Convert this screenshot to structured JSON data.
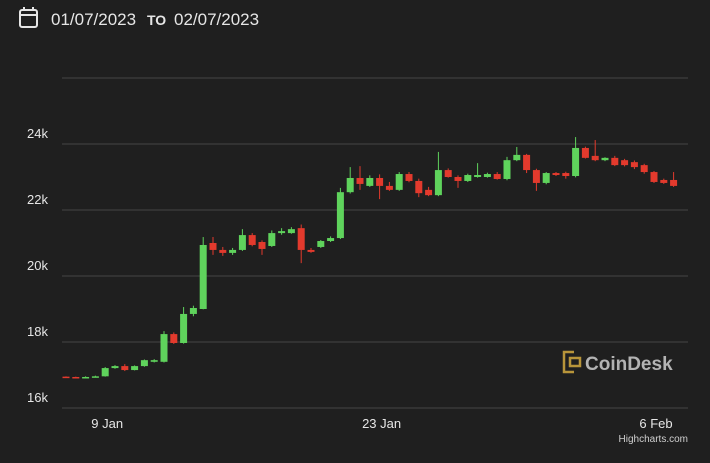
{
  "header": {
    "from": "01/07/2023",
    "separator": "TO",
    "to": "02/07/2023"
  },
  "chart_data": {
    "type": "candlestick",
    "categories": [
      null,
      null,
      null,
      null,
      "9 Jan",
      null,
      null,
      null,
      null,
      null,
      null,
      null,
      null,
      null,
      null,
      null,
      null,
      null,
      null,
      null,
      null,
      null,
      null,
      null,
      null,
      null,
      null,
      null,
      null,
      null,
      null,
      null,
      "23 Jan",
      null,
      null,
      null,
      null,
      null,
      null,
      null,
      null,
      null,
      null,
      null,
      null,
      null,
      null,
      null,
      null,
      null,
      null,
      null,
      null,
      null,
      null,
      null,
      null,
      null,
      null,
      null,
      "6 Feb",
      null,
      null
    ],
    "series": [
      {
        "up_color": "#5fd35c",
        "down_color": "#e33a2d",
        "open": [
          16950,
          16940,
          16930,
          16940,
          16960,
          17210,
          17270,
          17150,
          17270,
          17400,
          17400,
          18240,
          17970,
          18850,
          19000,
          21000,
          20790,
          20700,
          20790,
          21240,
          21030,
          20910,
          21300,
          21300,
          21450,
          20790,
          20880,
          21060,
          21150,
          22540,
          22970,
          22730,
          22970,
          22730,
          22610,
          23090,
          22880,
          22610,
          22450,
          23210,
          23000,
          22880,
          23000,
          23000,
          23090,
          22940,
          23510,
          23670,
          23210,
          22820,
          23120,
          23120,
          23030,
          23880,
          23640,
          23510,
          23580,
          23510,
          23450,
          23360,
          23150,
          22910,
          22910
        ],
        "high": [
          16960,
          16950,
          16960,
          16980,
          17240,
          17300,
          17330,
          17290,
          17470,
          17480,
          18330,
          18290,
          19060,
          19100,
          21180,
          21180,
          20880,
          20850,
          21420,
          21300,
          21080,
          21380,
          21450,
          21480,
          21560,
          20850,
          21090,
          21200,
          22670,
          23300,
          23330,
          23050,
          23080,
          22850,
          23150,
          23150,
          22950,
          22700,
          23760,
          23260,
          23050,
          23100,
          23420,
          23130,
          23150,
          23610,
          23910,
          23700,
          23250,
          23150,
          23150,
          23160,
          24210,
          23920,
          24120,
          23600,
          23640,
          23550,
          23500,
          23400,
          23180,
          22950,
          23150
        ],
        "low": [
          16930,
          16920,
          16920,
          16930,
          16950,
          17190,
          17120,
          17140,
          17250,
          17380,
          17380,
          17940,
          17950,
          18780,
          18990,
          20640,
          20610,
          20640,
          20760,
          20900,
          20640,
          20880,
          21250,
          21280,
          20390,
          20700,
          20850,
          21030,
          21120,
          22500,
          22610,
          22700,
          22330,
          22580,
          22580,
          22840,
          22390,
          22420,
          22420,
          22980,
          22670,
          22850,
          22980,
          22980,
          22920,
          22900,
          23480,
          23120,
          22580,
          22780,
          23030,
          22950,
          22990,
          23560,
          23480,
          23480,
          23330,
          23320,
          23240,
          23100,
          22820,
          22790,
          22700
        ],
        "close": [
          16940,
          16930,
          16940,
          16960,
          17210,
          17270,
          17150,
          17270,
          17450,
          17450,
          18240,
          17970,
          18850,
          19030,
          20940,
          20790,
          20700,
          20790,
          21240,
          20940,
          20820,
          21300,
          21360,
          21420,
          20790,
          20730,
          21060,
          21150,
          22540,
          22970,
          22790,
          22970,
          22730,
          22610,
          23090,
          22880,
          22510,
          22450,
          23210,
          23000,
          22880,
          23060,
          23060,
          23090,
          22940,
          23510,
          23670,
          23210,
          22820,
          23120,
          23060,
          23030,
          23880,
          23580,
          23510,
          23580,
          23360,
          23360,
          23300,
          23150,
          22850,
          22820,
          22730
        ]
      }
    ],
    "ylim": [
      16000,
      26000
    ],
    "yticks": [
      {
        "value": 16000,
        "label": "16k"
      },
      {
        "value": 18000,
        "label": "18k"
      },
      {
        "value": 20000,
        "label": "20k"
      },
      {
        "value": 22000,
        "label": "22k"
      },
      {
        "value": 24000,
        "label": "24k"
      }
    ],
    "grid": true,
    "watermark": "CoinDesk",
    "credits": "Highcharts.com"
  }
}
